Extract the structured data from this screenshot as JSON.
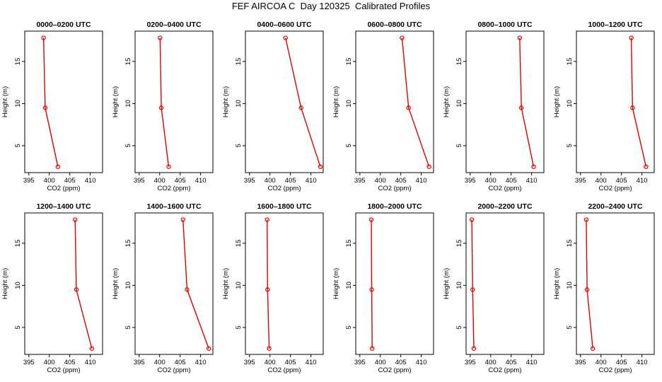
{
  "title": "FEF AIRCOA C  Day 120325  Calibrated Profiles",
  "colors": {
    "line": "#dd0000",
    "axis": "#000000",
    "background": "#ffffff"
  },
  "chart_data": [
    {
      "type": "line",
      "title": "0000–0200 UTC",
      "xlabel": "CO2 (ppm)",
      "ylabel": "Height (m)",
      "xlim": [
        394,
        413
      ],
      "ylim": [
        1.8,
        18.6
      ],
      "xticks": [
        395,
        400,
        405,
        410
      ],
      "xtick_labels": [
        "395",
        "400",
        "405",
        "410"
      ],
      "yticks": [
        5,
        10,
        15
      ],
      "ytick_labels": [
        "5",
        "10",
        "15"
      ],
      "series": [
        {
          "name": "CO2",
          "x": [
            402.1,
            399.0,
            398.6
          ],
          "y": [
            2.5,
            9.5,
            17.8
          ]
        }
      ]
    },
    {
      "type": "line",
      "title": "0200–0400 UTC",
      "xlabel": "CO2 (ppm)",
      "ylabel": "Height (m)",
      "xlim": [
        394,
        413
      ],
      "ylim": [
        1.8,
        18.6
      ],
      "xticks": [
        395,
        400,
        405,
        410
      ],
      "xtick_labels": [
        "395",
        "400",
        "405",
        "410"
      ],
      "yticks": [
        5,
        10,
        15
      ],
      "ytick_labels": [
        "5",
        "10",
        "15"
      ],
      "series": [
        {
          "name": "CO2",
          "x": [
            402.2,
            400.4,
            400.1
          ],
          "y": [
            2.5,
            9.5,
            17.8
          ]
        }
      ]
    },
    {
      "type": "line",
      "title": "0400–0600 UTC",
      "xlabel": "CO2 (ppm)",
      "ylabel": "Height (m)",
      "xlim": [
        394,
        413
      ],
      "ylim": [
        1.8,
        18.6
      ],
      "xticks": [
        395,
        400,
        405,
        410
      ],
      "xtick_labels": [
        "395",
        "400",
        "405",
        "410"
      ],
      "yticks": [
        5,
        10,
        15
      ],
      "ytick_labels": [
        "5",
        "10",
        "15"
      ],
      "series": [
        {
          "name": "CO2",
          "x": [
            412.3,
            407.6,
            403.8
          ],
          "y": [
            2.5,
            9.5,
            17.8
          ]
        }
      ]
    },
    {
      "type": "line",
      "title": "0600–0800 UTC",
      "xlabel": "CO2 (ppm)",
      "ylabel": "Height (m)",
      "xlim": [
        394,
        413
      ],
      "ylim": [
        1.8,
        18.6
      ],
      "xticks": [
        395,
        400,
        405,
        410
      ],
      "xtick_labels": [
        "395",
        "400",
        "405",
        "410"
      ],
      "yticks": [
        5,
        10,
        15
      ],
      "ytick_labels": [
        "5",
        "10",
        "15"
      ],
      "series": [
        {
          "name": "CO2",
          "x": [
            411.9,
            406.9,
            405.3
          ],
          "y": [
            2.5,
            9.5,
            17.8
          ]
        }
      ]
    },
    {
      "type": "line",
      "title": "0800–1000 UTC",
      "xlabel": "CO2 (ppm)",
      "ylabel": "Height (m)",
      "xlim": [
        394,
        413
      ],
      "ylim": [
        1.8,
        18.6
      ],
      "xticks": [
        395,
        400,
        405,
        410
      ],
      "xtick_labels": [
        "395",
        "400",
        "405",
        "410"
      ],
      "yticks": [
        5,
        10,
        15
      ],
      "ytick_labels": [
        "5",
        "10",
        "15"
      ],
      "series": [
        {
          "name": "CO2",
          "x": [
            410.5,
            407.5,
            407.1
          ],
          "y": [
            2.5,
            9.5,
            17.8
          ]
        }
      ]
    },
    {
      "type": "line",
      "title": "1000–1200 UTC",
      "xlabel": "CO2 (ppm)",
      "ylabel": "Height (m)",
      "xlim": [
        394,
        413
      ],
      "ylim": [
        1.8,
        18.6
      ],
      "xticks": [
        395,
        400,
        405,
        410
      ],
      "xtick_labels": [
        "395",
        "400",
        "405",
        "410"
      ],
      "yticks": [
        5,
        10,
        15
      ],
      "ytick_labels": [
        "5",
        "10",
        "15"
      ],
      "series": [
        {
          "name": "CO2",
          "x": [
            411.0,
            407.7,
            407.4
          ],
          "y": [
            2.5,
            9.5,
            17.8
          ]
        }
      ]
    },
    {
      "type": "line",
      "title": "1200–1400 UTC",
      "xlabel": "CO2 (ppm)",
      "ylabel": "Height (m)",
      "xlim": [
        394,
        413
      ],
      "ylim": [
        1.8,
        18.6
      ],
      "xticks": [
        395,
        400,
        405,
        410
      ],
      "xtick_labels": [
        "395",
        "400",
        "405",
        "410"
      ],
      "yticks": [
        5,
        10,
        15
      ],
      "ytick_labels": [
        "5",
        "10",
        "15"
      ],
      "series": [
        {
          "name": "CO2",
          "x": [
            410.4,
            406.6,
            406.3
          ],
          "y": [
            2.5,
            9.5,
            17.8
          ]
        }
      ]
    },
    {
      "type": "line",
      "title": "1400–1600 UTC",
      "xlabel": "CO2 (ppm)",
      "ylabel": "Height (m)",
      "xlim": [
        394,
        413
      ],
      "ylim": [
        1.8,
        18.6
      ],
      "xticks": [
        395,
        400,
        405,
        410
      ],
      "xtick_labels": [
        "395",
        "400",
        "405",
        "410"
      ],
      "yticks": [
        5,
        10,
        15
      ],
      "ytick_labels": [
        "5",
        "10",
        "15"
      ],
      "series": [
        {
          "name": "CO2",
          "x": [
            412.0,
            406.7,
            405.7
          ],
          "y": [
            2.5,
            9.5,
            17.8
          ]
        }
      ]
    },
    {
      "type": "line",
      "title": "1600–1800 UTC",
      "xlabel": "CO2 (ppm)",
      "ylabel": "Height (m)",
      "xlim": [
        394,
        413
      ],
      "ylim": [
        1.8,
        18.6
      ],
      "xticks": [
        395,
        400,
        405,
        410
      ],
      "xtick_labels": [
        "395",
        "400",
        "405",
        "410"
      ],
      "yticks": [
        5,
        10,
        15
      ],
      "ytick_labels": [
        "5",
        "10",
        "15"
      ],
      "series": [
        {
          "name": "CO2",
          "x": [
            399.8,
            399.4,
            399.3
          ],
          "y": [
            2.5,
            9.5,
            17.8
          ]
        }
      ]
    },
    {
      "type": "line",
      "title": "1800–2000 UTC",
      "xlabel": "CO2 (ppm)",
      "ylabel": "Height (m)",
      "xlim": [
        394,
        413
      ],
      "ylim": [
        1.8,
        18.6
      ],
      "xticks": [
        395,
        400,
        405,
        410
      ],
      "xtick_labels": [
        "395",
        "400",
        "405",
        "410"
      ],
      "yticks": [
        5,
        10,
        15
      ],
      "ytick_labels": [
        "5",
        "10",
        "15"
      ],
      "series": [
        {
          "name": "CO2",
          "x": [
            398.0,
            397.9,
            397.8
          ],
          "y": [
            2.5,
            9.5,
            17.8
          ]
        }
      ]
    },
    {
      "type": "line",
      "title": "2000–2200 UTC",
      "xlabel": "CO2 (ppm)",
      "ylabel": "Height (m)",
      "xlim": [
        394,
        413
      ],
      "ylim": [
        1.8,
        18.6
      ],
      "xticks": [
        395,
        400,
        405,
        410
      ],
      "xtick_labels": [
        "395",
        "400",
        "405",
        "410"
      ],
      "yticks": [
        5,
        10,
        15
      ],
      "ytick_labels": [
        "5",
        "10",
        "15"
      ],
      "series": [
        {
          "name": "CO2",
          "x": [
            395.9,
            395.6,
            395.4
          ],
          "y": [
            2.5,
            9.5,
            17.8
          ]
        }
      ]
    },
    {
      "type": "line",
      "title": "2200–2400 UTC",
      "xlabel": "CO2 (ppm)",
      "ylabel": "Height (m)",
      "xlim": [
        394,
        413
      ],
      "ylim": [
        1.8,
        18.6
      ],
      "xticks": [
        395,
        400,
        405,
        410
      ],
      "xtick_labels": [
        "395",
        "400",
        "405",
        "410"
      ],
      "yticks": [
        5,
        10,
        15
      ],
      "ytick_labels": [
        "5",
        "10",
        "15"
      ],
      "series": [
        {
          "name": "CO2",
          "x": [
            398.0,
            396.6,
            396.4
          ],
          "y": [
            2.5,
            9.5,
            17.8
          ]
        }
      ]
    }
  ]
}
